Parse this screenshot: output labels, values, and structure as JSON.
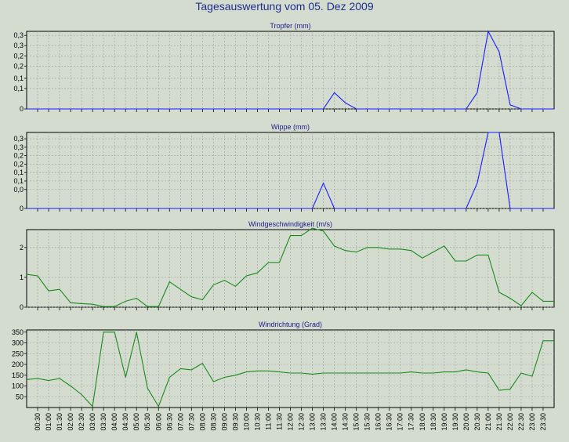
{
  "title": "Tagesauswertung vom 05. Dez 2009",
  "colors": {
    "background": "#d4dccf",
    "rain": "#1a1aff",
    "wind": "#1a8a1a",
    "grid": "#9aa0a0"
  },
  "x_ticks": [
    "00:30",
    "01:00",
    "01:30",
    "02:00",
    "02:30",
    "03:00",
    "03:30",
    "04:00",
    "04:30",
    "05:00",
    "05:30",
    "06:00",
    "06:30",
    "07:00",
    "07:30",
    "08:00",
    "08:30",
    "09:00",
    "09:30",
    "10:00",
    "10:30",
    "11:00",
    "11:30",
    "12:00",
    "12:30",
    "13:00",
    "13:30",
    "14:00",
    "14:30",
    "15:00",
    "15:30",
    "16:00",
    "16:30",
    "17:00",
    "17:30",
    "18:00",
    "18:30",
    "19:00",
    "19:30",
    "20:00",
    "20:30",
    "21:00",
    "21:30",
    "22:00",
    "22:30",
    "23:00",
    "23:30"
  ],
  "chart_data": [
    {
      "type": "line",
      "title": "Tropfer (mm)",
      "ylim": [
        0,
        0.38
      ],
      "yticks": [
        "0,3",
        "0,3",
        "0,2",
        "0,2",
        "0,1",
        "0,1",
        "0"
      ],
      "x": [
        0,
        0.5,
        1,
        1.5,
        2,
        2.5,
        3,
        3.5,
        4,
        4.5,
        5,
        5.5,
        6,
        6.5,
        7,
        7.5,
        8,
        8.5,
        9,
        9.5,
        10,
        10.5,
        11,
        11.5,
        12,
        12.5,
        13,
        13.5,
        14,
        14.5,
        15,
        15.5,
        16,
        16.5,
        17,
        17.5,
        18,
        18.5,
        19,
        19.5,
        20,
        20.5,
        21,
        21.5,
        22,
        22.5,
        23,
        23.5,
        24
      ],
      "series": [
        {
          "values": [
            0,
            0,
            0,
            0,
            0,
            0,
            0,
            0,
            0,
            0,
            0,
            0,
            0,
            0,
            0,
            0,
            0,
            0,
            0,
            0,
            0,
            0,
            0,
            0,
            0,
            0,
            0,
            0,
            0.08,
            0.03,
            0,
            0,
            0,
            0,
            0,
            0,
            0,
            0,
            0,
            0,
            0,
            0.08,
            0.38,
            0.28,
            0.02,
            0,
            0,
            0,
            0
          ]
        }
      ]
    },
    {
      "type": "line",
      "title": "Wippe (mm)",
      "ylim": [
        0,
        0.36
      ],
      "yticks": [
        "0,3",
        "0,3",
        "0,2",
        "0,2",
        "0,1",
        "0,1",
        "0,0",
        "0"
      ],
      "x": [
        0,
        0.5,
        1,
        1.5,
        2,
        2.5,
        3,
        3.5,
        4,
        4.5,
        5,
        5.5,
        6,
        6.5,
        7,
        7.5,
        8,
        8.5,
        9,
        9.5,
        10,
        10.5,
        11,
        11.5,
        12,
        12.5,
        13,
        13.5,
        14,
        14.5,
        15,
        15.5,
        16,
        16.5,
        17,
        17.5,
        18,
        18.5,
        19,
        19.5,
        20,
        20.5,
        21,
        21.5,
        22,
        22.5,
        23,
        23.5,
        24
      ],
      "series": [
        {
          "values": [
            0,
            0,
            0,
            0,
            0,
            0,
            0,
            0,
            0,
            0,
            0,
            0,
            0,
            0,
            0,
            0,
            0,
            0,
            0,
            0,
            0,
            0,
            0,
            0,
            0,
            0,
            0,
            0.12,
            0,
            0,
            0,
            0,
            0,
            0,
            0,
            0,
            0,
            0,
            0,
            0,
            0,
            0.12,
            0.36,
            0.36,
            0,
            0,
            0,
            0,
            0
          ]
        }
      ]
    },
    {
      "type": "line",
      "title": "Windgeschwindigkeit (m/s)",
      "ylim": [
        0,
        2.6
      ],
      "yticks": [
        "2",
        "1",
        "0"
      ],
      "x": [
        0,
        0.5,
        1,
        1.5,
        2,
        2.5,
        3,
        3.5,
        4,
        4.5,
        5,
        5.5,
        6,
        6.5,
        7,
        7.5,
        8,
        8.5,
        9,
        9.5,
        10,
        10.5,
        11,
        11.5,
        12,
        12.5,
        13,
        13.5,
        14,
        14.5,
        15,
        15.5,
        16,
        16.5,
        17,
        17.5,
        18,
        18.5,
        19,
        19.5,
        20,
        20.5,
        21,
        21.5,
        22,
        22.5,
        23,
        23.5,
        24
      ],
      "series": [
        {
          "values": [
            1.1,
            1.05,
            0.55,
            0.6,
            0.15,
            0.12,
            0.1,
            0.02,
            0.02,
            0.2,
            0.3,
            0.02,
            0.02,
            0.85,
            0.6,
            0.35,
            0.25,
            0.75,
            0.9,
            0.7,
            1.05,
            1.15,
            1.5,
            1.5,
            2.4,
            2.4,
            2.65,
            2.55,
            2.05,
            1.9,
            1.85,
            2.0,
            2.0,
            1.95,
            1.95,
            1.9,
            1.65,
            1.85,
            2.05,
            1.55,
            1.55,
            1.75,
            1.75,
            0.5,
            0.3,
            0.05,
            0.5,
            0.2,
            0.2
          ]
        }
      ]
    },
    {
      "type": "line",
      "title": "Windrichtung (Grad)",
      "ylim": [
        0,
        360
      ],
      "yticks": [
        "350",
        "300",
        "250",
        "200",
        "150",
        "100",
        "50"
      ],
      "x": [
        0,
        0.5,
        1,
        1.5,
        2,
        2.5,
        3,
        3.5,
        4,
        4.5,
        5,
        5.5,
        6,
        6.5,
        7,
        7.5,
        8,
        8.5,
        9,
        9.5,
        10,
        10.5,
        11,
        11.5,
        12,
        12.5,
        13,
        13.5,
        14,
        14.5,
        15,
        15.5,
        16,
        16.5,
        17,
        17.5,
        18,
        18.5,
        19,
        19.5,
        20,
        20.5,
        21,
        21.5,
        22,
        22.5,
        23,
        23.5,
        24
      ],
      "series": [
        {
          "values": [
            130,
            135,
            125,
            135,
            100,
            60,
            5,
            350,
            350,
            140,
            350,
            90,
            5,
            140,
            180,
            175,
            205,
            120,
            140,
            150,
            165,
            170,
            170,
            165,
            160,
            160,
            155,
            160,
            160,
            160,
            160,
            160,
            160,
            160,
            160,
            165,
            160,
            160,
            165,
            165,
            175,
            165,
            160,
            80,
            85,
            160,
            145,
            310,
            310
          ]
        }
      ]
    }
  ]
}
